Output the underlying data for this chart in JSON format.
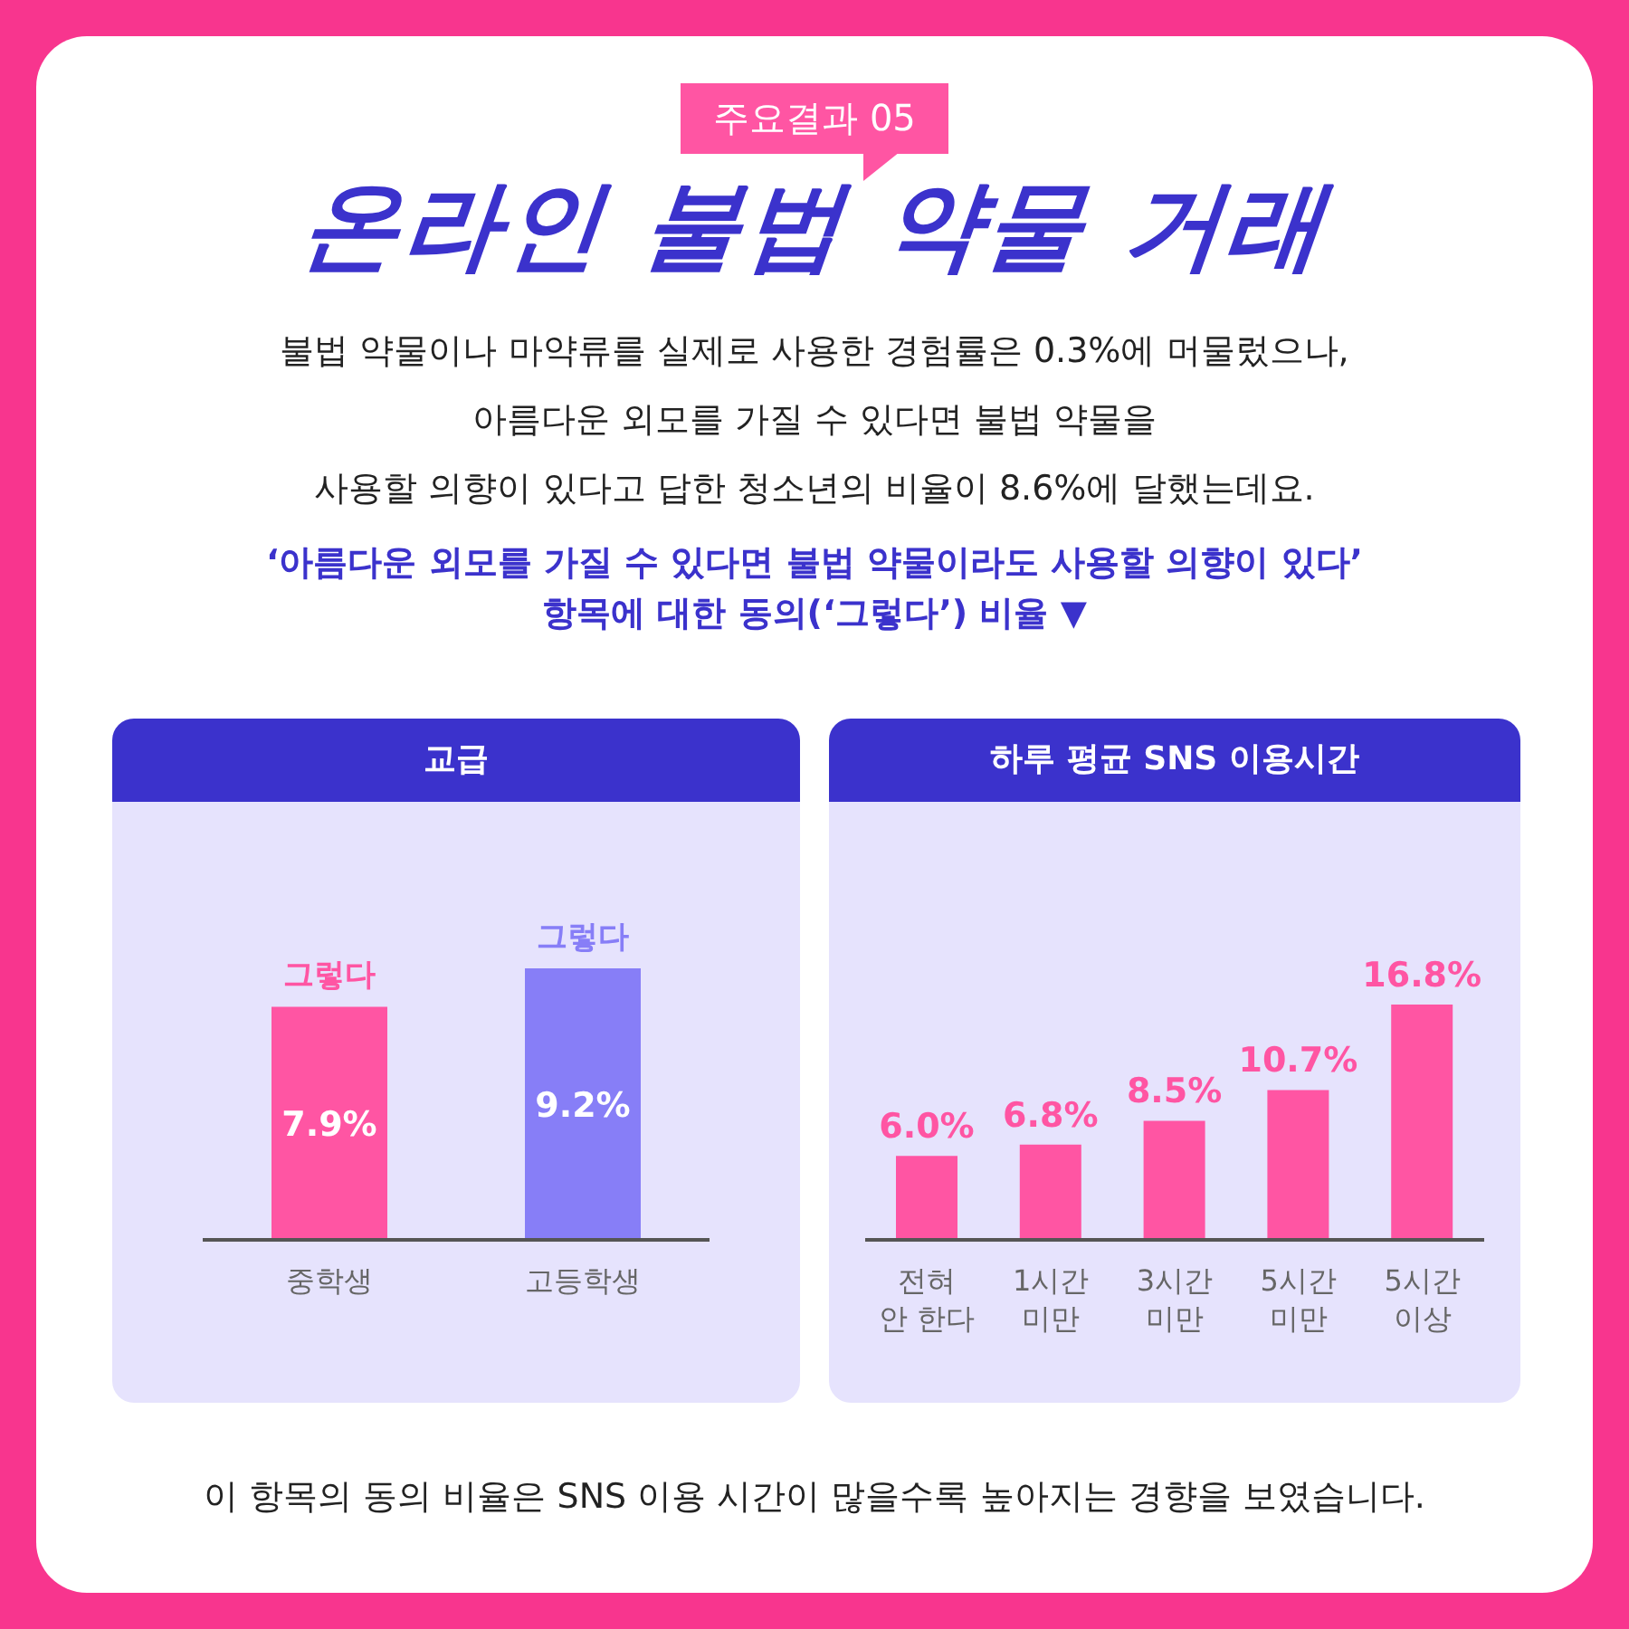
{
  "chart_data": [
    {
      "type": "other",
      "subtitle": "주요결과 05",
      "title": "온라인 불법 약물 거래",
      "annotations": [
        "불법 약물이나 마약류를 실제로 사용한 경험률은 0.3%에 머물렀으나,",
        "아름다운 외모를 가질 수 있다면 불법 약물을",
        "사용할 의향이 있다고 답한 청소년의 비율이 8.6%에 달했는데요.",
        "‘아름다운 외모를 가질 수 있다면 불법 약물이라도 사용할 의향이 있다’",
        "항목에 대한 동의(‘그렇다’) 비율 ▼"
      ]
    },
    {
      "type": "bar",
      "title": "교급",
      "categories": [
        "중학생",
        "고등학생"
      ],
      "values": [
        7.9,
        9.2
      ],
      "colors": [
        "#ff55a3",
        "#877ef7"
      ],
      "annotations": [
        {
          "text": "그렇다",
          "x": "중학생",
          "y": 7.9
        },
        {
          "text": "그렇다",
          "x": "고등학생",
          "y": 9.2
        }
      ],
      "value_labels": [
        "7.9%",
        "9.2%"
      ],
      "tick_labels": "x"
    },
    {
      "type": "bar",
      "title": "하루 평균 SNS 이용시간",
      "categories": [
        "전혀 안 한다",
        "1시간 미만",
        "3시간 미만",
        "5시간 미만",
        "5시간 이상"
      ],
      "values": [
        6.0,
        6.8,
        8.5,
        10.7,
        16.8
      ],
      "color": "#ff55a3",
      "value_labels": [
        "6.0%",
        "6.8%",
        "8.5%",
        "10.7%",
        "16.8%"
      ],
      "tick_labels": "x"
    },
    {
      "type": "other",
      "annotations": [
        "이 항목의 동의 비율은 SNS 이용 시간이 많을수록 높아지는 경향을 보였습니다."
      ]
    }
  ]
}
